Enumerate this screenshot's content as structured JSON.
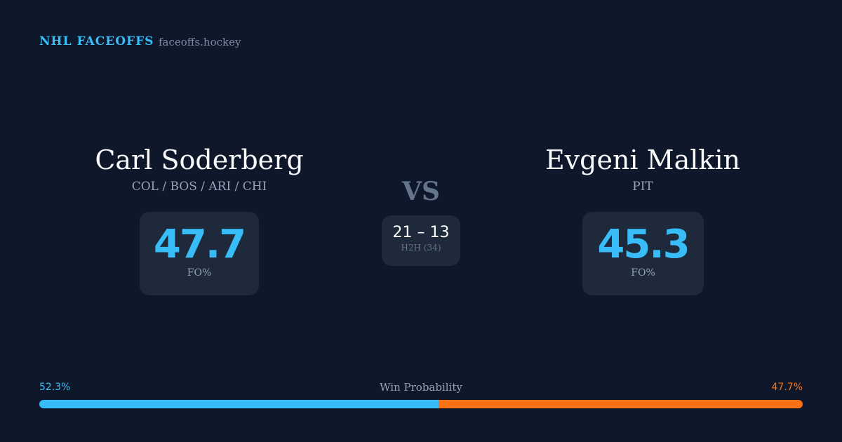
{
  "header": {
    "brand": "NHL FACEOFFS",
    "domain": "faceoffs.hockey"
  },
  "left_player": {
    "name": "Carl Soderberg",
    "teams": "COL / BOS / ARI / CHI",
    "fo_pct": "47.7",
    "fo_label": "FO%"
  },
  "right_player": {
    "name": "Evgeni Malkin",
    "teams": "PIT",
    "fo_pct": "45.3",
    "fo_label": "FO%"
  },
  "vs_label": "VS",
  "h2h": {
    "score": "21 – 13",
    "label": "H2H (34)"
  },
  "win_probability": {
    "label": "Win Probability",
    "left": "52.3%",
    "right": "47.7%",
    "left_value": 52.3,
    "right_value": 47.7
  },
  "colors": {
    "background": "#0f172a",
    "card": "#1e293b",
    "accent_blue": "#38bdf8",
    "accent_orange": "#f97316"
  }
}
